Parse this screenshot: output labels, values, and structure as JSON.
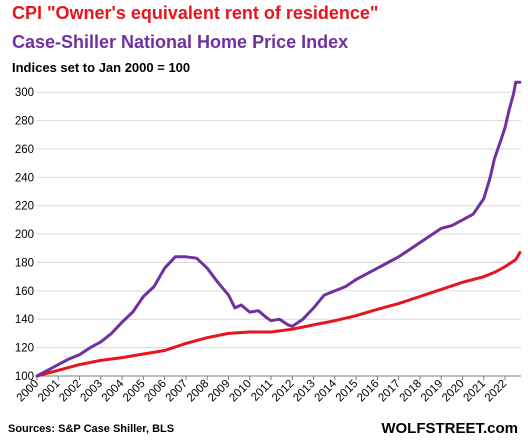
{
  "chart_data": {
    "type": "line",
    "title": "CPI \"Owner's equivalent rent of residence\"",
    "subtitle": "Case-Shiller National Home Price Index",
    "note": "Indices set to Jan 2000 = 100",
    "source": "Sources: S&P Case Shiller, BLS",
    "brand": "WOLFSTREET.com",
    "xlabel": "",
    "ylabel": "",
    "xlim": [
      2000,
      2022.75
    ],
    "ylim": [
      100,
      310
    ],
    "grid": true,
    "x_ticks": [
      2000,
      2001,
      2002,
      2003,
      2004,
      2005,
      2006,
      2007,
      2008,
      2009,
      2010,
      2011,
      2012,
      2013,
      2014,
      2015,
      2016,
      2017,
      2018,
      2019,
      2020,
      2021,
      2022
    ],
    "y_ticks": [
      100,
      120,
      140,
      160,
      180,
      200,
      220,
      240,
      260,
      280,
      300
    ],
    "series": [
      {
        "name": "CPI \"Owner's equivalent rent of residence\"",
        "color": "#e8141c",
        "x": [
          2000,
          2001,
          2002,
          2003,
          2004,
          2005,
          2006,
          2007,
          2008,
          2009,
          2010,
          2011,
          2012,
          2013,
          2014,
          2015,
          2016,
          2017,
          2018,
          2019,
          2020,
          2021,
          2021.5,
          2022,
          2022.5,
          2022.7
        ],
        "values": [
          100,
          104,
          108,
          111,
          113,
          115.5,
          118,
          123,
          127,
          130,
          131,
          131,
          133,
          136,
          139,
          142.5,
          147,
          151,
          156,
          161,
          166,
          170,
          173,
          177,
          182,
          187
        ]
      },
      {
        "name": "Case-Shiller National Home Price Index",
        "color": "#7030a0",
        "x": [
          2000,
          2000.5,
          2001,
          2001.5,
          2002,
          2002.5,
          2003,
          2003.5,
          2004,
          2004.5,
          2005,
          2005.5,
          2006,
          2006.5,
          2007,
          2007.5,
          2008,
          2008.5,
          2009,
          2009.3,
          2009.6,
          2010,
          2010.4,
          2010.8,
          2011,
          2011.4,
          2011.8,
          2012,
          2012.5,
          2013,
          2013.5,
          2014,
          2014.5,
          2015,
          2015.5,
          2016,
          2016.5,
          2017,
          2017.5,
          2018,
          2018.5,
          2019,
          2019.5,
          2020,
          2020.5,
          2021,
          2021.3,
          2021.5,
          2021.8,
          2022,
          2022.2,
          2022.4,
          2022.5,
          2022.7
        ],
        "values": [
          100,
          104,
          108,
          112,
          115,
          120,
          124,
          130,
          138,
          145,
          156,
          163,
          176,
          184,
          184,
          183,
          176,
          166,
          157,
          148,
          150,
          145,
          146,
          141,
          139,
          140,
          136,
          135,
          140,
          148,
          157,
          160,
          163,
          168,
          172,
          176,
          180,
          184,
          189,
          194,
          199,
          204,
          206,
          210,
          214,
          225,
          240,
          253,
          266,
          275,
          288,
          299,
          307,
          307
        ]
      }
    ]
  }
}
